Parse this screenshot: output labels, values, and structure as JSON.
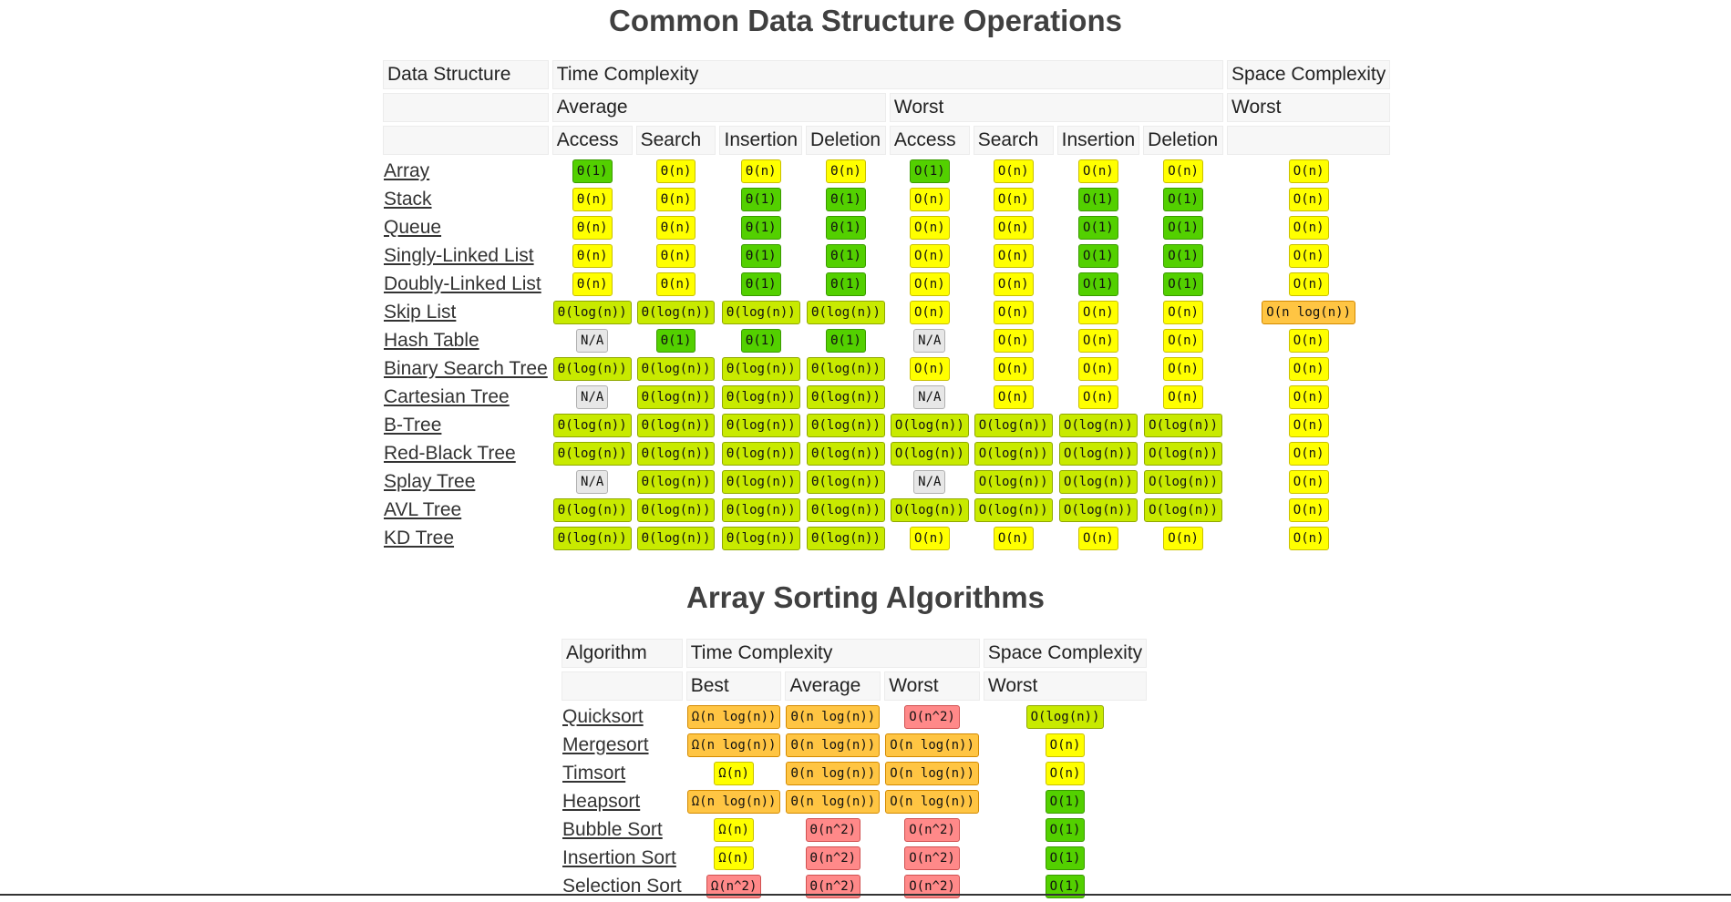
{
  "ds": {
    "title": "Common Data Structure Operations",
    "h_structure": "Data Structure",
    "h_time": "Time Complexity",
    "h_space": "Space Complexity",
    "h_average": "Average",
    "h_worst": "Worst",
    "h_space_worst": "Worst",
    "cols": [
      "Access",
      "Search",
      "Insertion",
      "Deletion",
      "Access",
      "Search",
      "Insertion",
      "Deletion"
    ],
    "rows": [
      {
        "name": "Array",
        "cells": [
          [
            "Θ(1)",
            "green"
          ],
          [
            "Θ(n)",
            "yellow"
          ],
          [
            "Θ(n)",
            "yellow"
          ],
          [
            "Θ(n)",
            "yellow"
          ],
          [
            "O(1)",
            "green"
          ],
          [
            "O(n)",
            "yellow"
          ],
          [
            "O(n)",
            "yellow"
          ],
          [
            "O(n)",
            "yellow"
          ],
          [
            "O(n)",
            "yellow"
          ]
        ]
      },
      {
        "name": "Stack",
        "cells": [
          [
            "Θ(n)",
            "yellow"
          ],
          [
            "Θ(n)",
            "yellow"
          ],
          [
            "Θ(1)",
            "green"
          ],
          [
            "Θ(1)",
            "green"
          ],
          [
            "O(n)",
            "yellow"
          ],
          [
            "O(n)",
            "yellow"
          ],
          [
            "O(1)",
            "green"
          ],
          [
            "O(1)",
            "green"
          ],
          [
            "O(n)",
            "yellow"
          ]
        ]
      },
      {
        "name": "Queue",
        "cells": [
          [
            "Θ(n)",
            "yellow"
          ],
          [
            "Θ(n)",
            "yellow"
          ],
          [
            "Θ(1)",
            "green"
          ],
          [
            "Θ(1)",
            "green"
          ],
          [
            "O(n)",
            "yellow"
          ],
          [
            "O(n)",
            "yellow"
          ],
          [
            "O(1)",
            "green"
          ],
          [
            "O(1)",
            "green"
          ],
          [
            "O(n)",
            "yellow"
          ]
        ]
      },
      {
        "name": "Singly-Linked List",
        "cells": [
          [
            "Θ(n)",
            "yellow"
          ],
          [
            "Θ(n)",
            "yellow"
          ],
          [
            "Θ(1)",
            "green"
          ],
          [
            "Θ(1)",
            "green"
          ],
          [
            "O(n)",
            "yellow"
          ],
          [
            "O(n)",
            "yellow"
          ],
          [
            "O(1)",
            "green"
          ],
          [
            "O(1)",
            "green"
          ],
          [
            "O(n)",
            "yellow"
          ]
        ]
      },
      {
        "name": "Doubly-Linked List",
        "cells": [
          [
            "Θ(n)",
            "yellow"
          ],
          [
            "Θ(n)",
            "yellow"
          ],
          [
            "Θ(1)",
            "green"
          ],
          [
            "Θ(1)",
            "green"
          ],
          [
            "O(n)",
            "yellow"
          ],
          [
            "O(n)",
            "yellow"
          ],
          [
            "O(1)",
            "green"
          ],
          [
            "O(1)",
            "green"
          ],
          [
            "O(n)",
            "yellow"
          ]
        ]
      },
      {
        "name": "Skip List",
        "cells": [
          [
            "Θ(log(n))",
            "yellow-green"
          ],
          [
            "Θ(log(n))",
            "yellow-green"
          ],
          [
            "Θ(log(n))",
            "yellow-green"
          ],
          [
            "Θ(log(n))",
            "yellow-green"
          ],
          [
            "O(n)",
            "yellow"
          ],
          [
            "O(n)",
            "yellow"
          ],
          [
            "O(n)",
            "yellow"
          ],
          [
            "O(n)",
            "yellow"
          ],
          [
            "O(n log(n))",
            "orange"
          ]
        ]
      },
      {
        "name": "Hash Table",
        "cells": [
          [
            "N/A",
            "gray"
          ],
          [
            "Θ(1)",
            "green"
          ],
          [
            "Θ(1)",
            "green"
          ],
          [
            "Θ(1)",
            "green"
          ],
          [
            "N/A",
            "gray"
          ],
          [
            "O(n)",
            "yellow"
          ],
          [
            "O(n)",
            "yellow"
          ],
          [
            "O(n)",
            "yellow"
          ],
          [
            "O(n)",
            "yellow"
          ]
        ]
      },
      {
        "name": "Binary Search Tree",
        "cells": [
          [
            "Θ(log(n))",
            "yellow-green"
          ],
          [
            "Θ(log(n))",
            "yellow-green"
          ],
          [
            "Θ(log(n))",
            "yellow-green"
          ],
          [
            "Θ(log(n))",
            "yellow-green"
          ],
          [
            "O(n)",
            "yellow"
          ],
          [
            "O(n)",
            "yellow"
          ],
          [
            "O(n)",
            "yellow"
          ],
          [
            "O(n)",
            "yellow"
          ],
          [
            "O(n)",
            "yellow"
          ]
        ]
      },
      {
        "name": "Cartesian Tree",
        "cells": [
          [
            "N/A",
            "gray"
          ],
          [
            "Θ(log(n))",
            "yellow-green"
          ],
          [
            "Θ(log(n))",
            "yellow-green"
          ],
          [
            "Θ(log(n))",
            "yellow-green"
          ],
          [
            "N/A",
            "gray"
          ],
          [
            "O(n)",
            "yellow"
          ],
          [
            "O(n)",
            "yellow"
          ],
          [
            "O(n)",
            "yellow"
          ],
          [
            "O(n)",
            "yellow"
          ]
        ]
      },
      {
        "name": "B-Tree",
        "cells": [
          [
            "Θ(log(n))",
            "yellow-green"
          ],
          [
            "Θ(log(n))",
            "yellow-green"
          ],
          [
            "Θ(log(n))",
            "yellow-green"
          ],
          [
            "Θ(log(n))",
            "yellow-green"
          ],
          [
            "O(log(n))",
            "yellow-green"
          ],
          [
            "O(log(n))",
            "yellow-green"
          ],
          [
            "O(log(n))",
            "yellow-green"
          ],
          [
            "O(log(n))",
            "yellow-green"
          ],
          [
            "O(n)",
            "yellow"
          ]
        ]
      },
      {
        "name": "Red-Black Tree",
        "cells": [
          [
            "Θ(log(n))",
            "yellow-green"
          ],
          [
            "Θ(log(n))",
            "yellow-green"
          ],
          [
            "Θ(log(n))",
            "yellow-green"
          ],
          [
            "Θ(log(n))",
            "yellow-green"
          ],
          [
            "O(log(n))",
            "yellow-green"
          ],
          [
            "O(log(n))",
            "yellow-green"
          ],
          [
            "O(log(n))",
            "yellow-green"
          ],
          [
            "O(log(n))",
            "yellow-green"
          ],
          [
            "O(n)",
            "yellow"
          ]
        ]
      },
      {
        "name": "Splay Tree",
        "cells": [
          [
            "N/A",
            "gray"
          ],
          [
            "Θ(log(n))",
            "yellow-green"
          ],
          [
            "Θ(log(n))",
            "yellow-green"
          ],
          [
            "Θ(log(n))",
            "yellow-green"
          ],
          [
            "N/A",
            "gray"
          ],
          [
            "O(log(n))",
            "yellow-green"
          ],
          [
            "O(log(n))",
            "yellow-green"
          ],
          [
            "O(log(n))",
            "yellow-green"
          ],
          [
            "O(n)",
            "yellow"
          ]
        ]
      },
      {
        "name": "AVL Tree",
        "cells": [
          [
            "Θ(log(n))",
            "yellow-green"
          ],
          [
            "Θ(log(n))",
            "yellow-green"
          ],
          [
            "Θ(log(n))",
            "yellow-green"
          ],
          [
            "Θ(log(n))",
            "yellow-green"
          ],
          [
            "O(log(n))",
            "yellow-green"
          ],
          [
            "O(log(n))",
            "yellow-green"
          ],
          [
            "O(log(n))",
            "yellow-green"
          ],
          [
            "O(log(n))",
            "yellow-green"
          ],
          [
            "O(n)",
            "yellow"
          ]
        ]
      },
      {
        "name": "KD Tree",
        "cells": [
          [
            "Θ(log(n))",
            "yellow-green"
          ],
          [
            "Θ(log(n))",
            "yellow-green"
          ],
          [
            "Θ(log(n))",
            "yellow-green"
          ],
          [
            "Θ(log(n))",
            "yellow-green"
          ],
          [
            "O(n)",
            "yellow"
          ],
          [
            "O(n)",
            "yellow"
          ],
          [
            "O(n)",
            "yellow"
          ],
          [
            "O(n)",
            "yellow"
          ],
          [
            "O(n)",
            "yellow"
          ]
        ]
      }
    ]
  },
  "sort": {
    "title": "Array Sorting Algorithms",
    "h_algorithm": "Algorithm",
    "h_time": "Time Complexity",
    "h_space": "Space Complexity",
    "h_best": "Best",
    "h_average": "Average",
    "h_worst": "Worst",
    "h_space_worst": "Worst",
    "rows": [
      {
        "name": "Quicksort",
        "cells": [
          [
            "Ω(n log(n))",
            "orange"
          ],
          [
            "Θ(n log(n))",
            "orange"
          ],
          [
            "O(n^2)",
            "red"
          ],
          [
            "O(log(n))",
            "yellow-green"
          ]
        ]
      },
      {
        "name": "Mergesort",
        "cells": [
          [
            "Ω(n log(n))",
            "orange"
          ],
          [
            "Θ(n log(n))",
            "orange"
          ],
          [
            "O(n log(n))",
            "orange"
          ],
          [
            "O(n)",
            "yellow"
          ]
        ]
      },
      {
        "name": "Timsort",
        "cells": [
          [
            "Ω(n)",
            "yellow"
          ],
          [
            "Θ(n log(n))",
            "orange"
          ],
          [
            "O(n log(n))",
            "orange"
          ],
          [
            "O(n)",
            "yellow"
          ]
        ]
      },
      {
        "name": "Heapsort",
        "cells": [
          [
            "Ω(n log(n))",
            "orange"
          ],
          [
            "Θ(n log(n))",
            "orange"
          ],
          [
            "O(n log(n))",
            "orange"
          ],
          [
            "O(1)",
            "green"
          ]
        ]
      },
      {
        "name": "Bubble Sort",
        "cells": [
          [
            "Ω(n)",
            "yellow"
          ],
          [
            "Θ(n^2)",
            "red"
          ],
          [
            "O(n^2)",
            "red"
          ],
          [
            "O(1)",
            "green"
          ]
        ]
      },
      {
        "name": "Insertion Sort",
        "cells": [
          [
            "Ω(n)",
            "yellow"
          ],
          [
            "Θ(n^2)",
            "red"
          ],
          [
            "O(n^2)",
            "red"
          ],
          [
            "O(1)",
            "green"
          ]
        ]
      },
      {
        "name": "Selection Sort",
        "cells": [
          [
            "Ω(n^2)",
            "red"
          ],
          [
            "Θ(n^2)",
            "red"
          ],
          [
            "O(n^2)",
            "red"
          ],
          [
            "O(1)",
            "green"
          ]
        ]
      }
    ]
  }
}
